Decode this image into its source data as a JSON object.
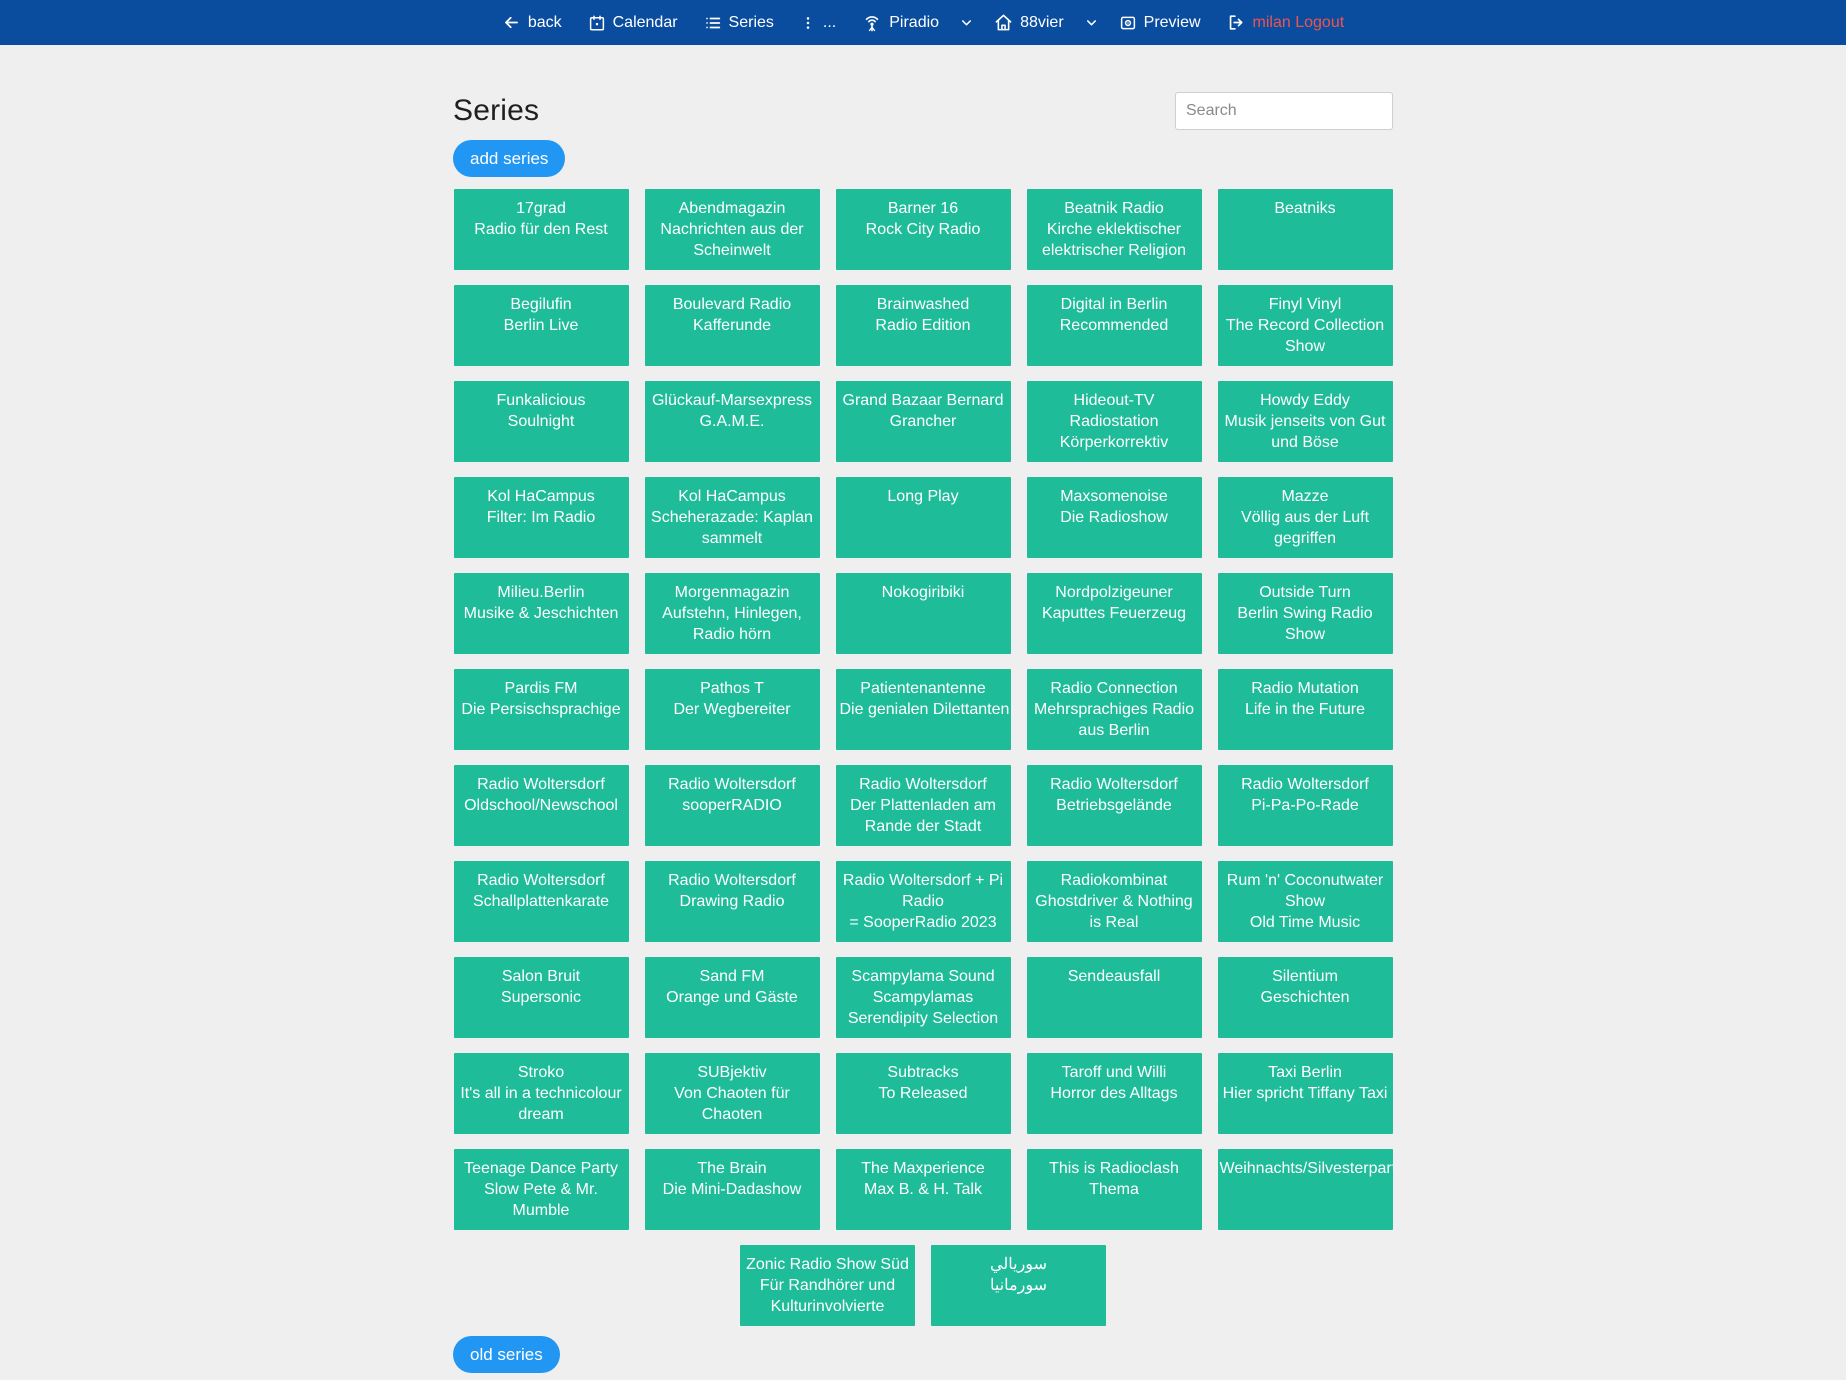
{
  "navbar": {
    "items": [
      {
        "label": "back",
        "icon": "arrow-left"
      },
      {
        "label": "Calendar",
        "icon": "calendar"
      },
      {
        "label": "Series",
        "icon": "list"
      },
      {
        "label": "...",
        "icon": "kebab-vertical"
      },
      {
        "label": "Piradio",
        "icon": "broadcast"
      },
      {
        "label": "",
        "icon": "chevron-down"
      },
      {
        "label": "88vier",
        "icon": "home"
      },
      {
        "label": "",
        "icon": "chevron-down"
      },
      {
        "label": "Preview",
        "icon": "preview"
      },
      {
        "label": "milan Logout",
        "icon": "logout"
      }
    ]
  },
  "page": {
    "title": "Series",
    "search_placeholder": "Search",
    "add_series_label": "add series",
    "old_series_label": "old series"
  },
  "colors": {
    "navbar_bg": "#0a4d9e",
    "page_bg": "#efefef",
    "card_bg": "#1fbc9a",
    "button_bg": "#2196f3",
    "logout_red": "#ef5350"
  },
  "series": [
    {
      "lines": [
        "17grad",
        "Radio für den Rest"
      ]
    },
    {
      "lines": [
        "Abendmagazin",
        "Nachrichten aus der",
        "Scheinwelt"
      ]
    },
    {
      "lines": [
        "Barner 16",
        "Rock City Radio"
      ]
    },
    {
      "lines": [
        "Beatnik Radio",
        "Kirche eklektischer",
        "elektrischer Religion"
      ]
    },
    {
      "lines": [
        "Beatniks"
      ]
    },
    {
      "lines": [
        "Begilufin",
        "Berlin Live"
      ]
    },
    {
      "lines": [
        "Boulevard Radio",
        "Kafferunde"
      ]
    },
    {
      "lines": [
        "Brainwashed",
        "Radio Edition"
      ]
    },
    {
      "lines": [
        "Digital in Berlin",
        "Recommended"
      ]
    },
    {
      "lines": [
        "Finyl Vinyl",
        "The Record Collection",
        "Show"
      ]
    },
    {
      "lines": [
        "Funkalicious",
        "Soulnight"
      ]
    },
    {
      "lines": [
        "Glückauf-Marsexpress",
        "G.A.M.E."
      ]
    },
    {
      "lines": [
        "Grand Bazaar Bernard",
        "Grancher"
      ]
    },
    {
      "lines": [
        "Hideout-TV",
        "Radiostation",
        "Körperkorrektiv"
      ]
    },
    {
      "lines": [
        "Howdy Eddy",
        "Musik jenseits von Gut",
        "und Böse"
      ]
    },
    {
      "lines": [
        "Kol HaCampus",
        "Filter: Im Radio"
      ]
    },
    {
      "lines": [
        "Kol HaCampus",
        "Scheherazade: Kaplan",
        "sammelt"
      ]
    },
    {
      "lines": [
        "Long Play"
      ]
    },
    {
      "lines": [
        "Maxsomenoise",
        "Die Radioshow"
      ]
    },
    {
      "lines": [
        "Mazze",
        "Völlig aus der Luft",
        "gegriffen"
      ]
    },
    {
      "lines": [
        "Milieu.Berlin",
        "Musike & Jeschichten"
      ]
    },
    {
      "lines": [
        "Morgenmagazin",
        "Aufstehn, Hinlegen,",
        "Radio hörn"
      ]
    },
    {
      "lines": [
        "Nokogiribiki"
      ]
    },
    {
      "lines": [
        "Nordpolzigeuner",
        "Kaputtes Feuerzeug"
      ]
    },
    {
      "lines": [
        "Outside Turn",
        "Berlin Swing Radio",
        "Show"
      ]
    },
    {
      "lines": [
        "Pardis FM",
        "Die Persischsprachige"
      ]
    },
    {
      "lines": [
        "Pathos T",
        "Der Wegbereiter"
      ]
    },
    {
      "lines": [
        "Patientenantenne",
        "Die genialen Dilettanten"
      ]
    },
    {
      "lines": [
        "Radio Connection",
        "Mehrsprachiges Radio",
        "aus Berlin"
      ]
    },
    {
      "lines": [
        "Radio Mutation",
        "Life in the Future"
      ]
    },
    {
      "lines": [
        "Radio Woltersdorf",
        "Oldschool/Newschool"
      ]
    },
    {
      "lines": [
        "Radio Woltersdorf",
        "sooperRADIO"
      ]
    },
    {
      "lines": [
        "Radio Woltersdorf",
        "Der Plattenladen am",
        "Rande der Stadt"
      ]
    },
    {
      "lines": [
        "Radio Woltersdorf",
        "Betriebsgelände"
      ]
    },
    {
      "lines": [
        "Radio Woltersdorf",
        "Pi-Pa-Po-Rade"
      ]
    },
    {
      "lines": [
        "Radio Woltersdorf",
        "Schallplattenkarate"
      ]
    },
    {
      "lines": [
        "Radio Woltersdorf",
        "Drawing Radio"
      ]
    },
    {
      "lines": [
        "Radio Woltersdorf + Pi",
        "Radio",
        "= SooperRadio 2023"
      ]
    },
    {
      "lines": [
        "Radiokombinat",
        "Ghostdriver & Nothing",
        "is Real"
      ]
    },
    {
      "lines": [
        "Rum 'n' Coconutwater",
        "Show",
        "Old Time Music"
      ]
    },
    {
      "lines": [
        "Salon Bruit",
        "Supersonic"
      ]
    },
    {
      "lines": [
        "Sand FM",
        "Orange und Gäste"
      ]
    },
    {
      "lines": [
        "Scampylama Sound",
        "Scampylamas",
        "Serendipity Selection"
      ]
    },
    {
      "lines": [
        "Sendeausfall"
      ]
    },
    {
      "lines": [
        "Silentium",
        "Geschichten"
      ]
    },
    {
      "lines": [
        "Stroko",
        "It's all in a technicolour",
        "dream"
      ]
    },
    {
      "lines": [
        "SUBjektiv",
        "Von Chaoten für",
        "Chaoten"
      ]
    },
    {
      "lines": [
        "Subtracks",
        "To Released"
      ]
    },
    {
      "lines": [
        "Taroff und Willi",
        "Horror des Alltags"
      ]
    },
    {
      "lines": [
        "Taxi Berlin",
        "Hier spricht Tiffany Taxi"
      ]
    },
    {
      "lines": [
        "Teenage Dance Party",
        "Slow Pete & Mr.",
        "Mumble"
      ]
    },
    {
      "lines": [
        "The Brain",
        "Die Mini-Dadashow"
      ]
    },
    {
      "lines": [
        "The Maxperience",
        "Max B. & H. Talk"
      ]
    },
    {
      "lines": [
        "This is Radioclash",
        "Thema"
      ]
    },
    {
      "lines": [
        "Weihnachts/Silvesterparty"
      ]
    },
    {
      "lines": [
        "Zonic Radio Show Süd",
        "Für Randhörer und",
        "Kulturinvolvierte"
      ]
    },
    {
      "lines": [
        "سوريالي",
        "سورمانيا"
      ]
    }
  ]
}
